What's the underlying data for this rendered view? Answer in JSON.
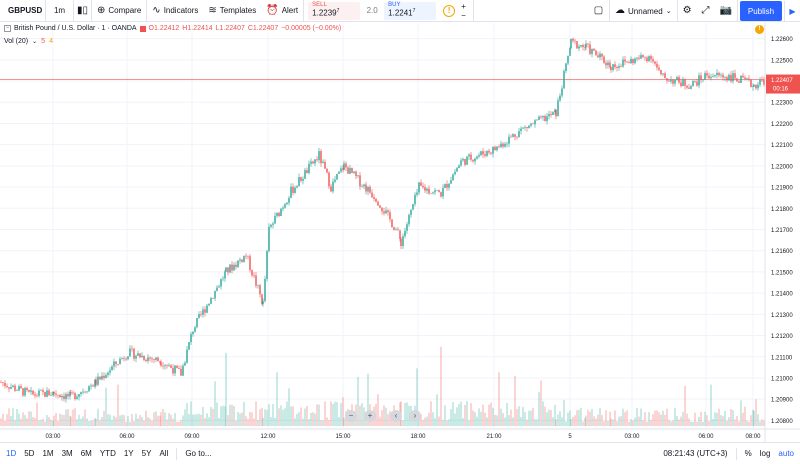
{
  "toolbar": {
    "symbol": "GBPUSD",
    "interval": "1m",
    "compare_label": "Compare",
    "indicators_label": "Indicators",
    "templates_label": "Templates",
    "alert_label": "Alert",
    "sell_label": "SELL",
    "sell_price": "1.2239",
    "sell_sup": "7",
    "spread": "2.0",
    "buy_label": "BUY",
    "buy_price": "1.2241",
    "buy_sup": "7",
    "layout_name": "Unnamed",
    "publish_label": "Publish"
  },
  "legend": {
    "title": "British Pound / U.S. Dollar · 1 · OANDA",
    "open": "O1.22412",
    "high": "H1.22414",
    "low": "L1.22407",
    "close": "C1.22407",
    "change": "−0.00005 (−0.00%)",
    "vol_label": "Vol (20)",
    "vol_val1": "5",
    "vol_val2": "4"
  },
  "price_axis": {
    "ticks": [
      "1.22600",
      "1.22500",
      "1.22400",
      "1.22300",
      "1.22200",
      "1.22100",
      "1.22000",
      "1.21900",
      "1.21800",
      "1.21700",
      "1.21600",
      "1.21500",
      "1.21400",
      "1.21300",
      "1.21200",
      "1.21100",
      "1.21000",
      "1.20900",
      "1.20800"
    ],
    "current_price": "1.22407",
    "countdown": "00:16"
  },
  "time_axis": {
    "ticks": [
      "03:00",
      "06:00",
      "09:00",
      "12:00",
      "15:00",
      "18:00",
      "21:00",
      "5",
      "03:00",
      "06:00",
      "08:00"
    ]
  },
  "bottom": {
    "ranges": [
      "1D",
      "5D",
      "1M",
      "3M",
      "6M",
      "YTD",
      "1Y",
      "5Y",
      "All"
    ],
    "active_range": "1D",
    "goto_label": "Go to...",
    "clock": "08:21:43 (UTC+3)",
    "percent_label": "%",
    "log_label": "log",
    "auto_label": "auto"
  },
  "colors": {
    "up": "#26a69a",
    "down": "#ef5350",
    "accent": "#2962ff",
    "price_line": "#ef5350"
  },
  "chart_data": {
    "type": "candlestick",
    "symbol": "GBPUSD",
    "interval": "1m",
    "ylim": [
      1.2075,
      1.2265
    ],
    "series_shape": [
      {
        "x": "01:00",
        "y": 1.2098
      },
      {
        "x": "02:00",
        "y": 1.2092
      },
      {
        "x": "03:00",
        "y": 1.2093
      },
      {
        "x": "04:00",
        "y": 1.2091
      },
      {
        "x": "05:00",
        "y": 1.2098
      },
      {
        "x": "06:00",
        "y": 1.2112
      },
      {
        "x": "07:00",
        "y": 1.2108
      },
      {
        "x": "08:00",
        "y": 1.2102
      },
      {
        "x": "09:00",
        "y": 1.2123
      },
      {
        "x": "10:00",
        "y": 1.215
      },
      {
        "x": "11:00",
        "y": 1.2158
      },
      {
        "x": "11:30",
        "y": 1.2135
      },
      {
        "x": "12:00",
        "y": 1.217
      },
      {
        "x": "13:00",
        "y": 1.2188
      },
      {
        "x": "14:00",
        "y": 1.2205
      },
      {
        "x": "14:30",
        "y": 1.219
      },
      {
        "x": "15:00",
        "y": 1.22
      },
      {
        "x": "16:00",
        "y": 1.2185
      },
      {
        "x": "17:00",
        "y": 1.217
      },
      {
        "x": "17:30",
        "y": 1.2164
      },
      {
        "x": "18:00",
        "y": 1.219
      },
      {
        "x": "19:00",
        "y": 1.2187
      },
      {
        "x": "20:00",
        "y": 1.2202
      },
      {
        "x": "21:00",
        "y": 1.2208
      },
      {
        "x": "22:00",
        "y": 1.2217
      },
      {
        "x": "23:00",
        "y": 1.2225
      },
      {
        "x": "23:30",
        "y": 1.2258
      },
      {
        "x": "00:00",
        "y": 1.2256
      },
      {
        "x": "01:00",
        "y": 1.2247
      },
      {
        "x": "02:00",
        "y": 1.2252
      },
      {
        "x": "03:00",
        "y": 1.2242
      },
      {
        "x": "04:00",
        "y": 1.2238
      },
      {
        "x": "05:00",
        "y": 1.2243
      },
      {
        "x": "06:00",
        "y": 1.2242
      },
      {
        "x": "07:00",
        "y": 1.2238
      },
      {
        "x": "08:00",
        "y": 1.2241
      }
    ]
  }
}
